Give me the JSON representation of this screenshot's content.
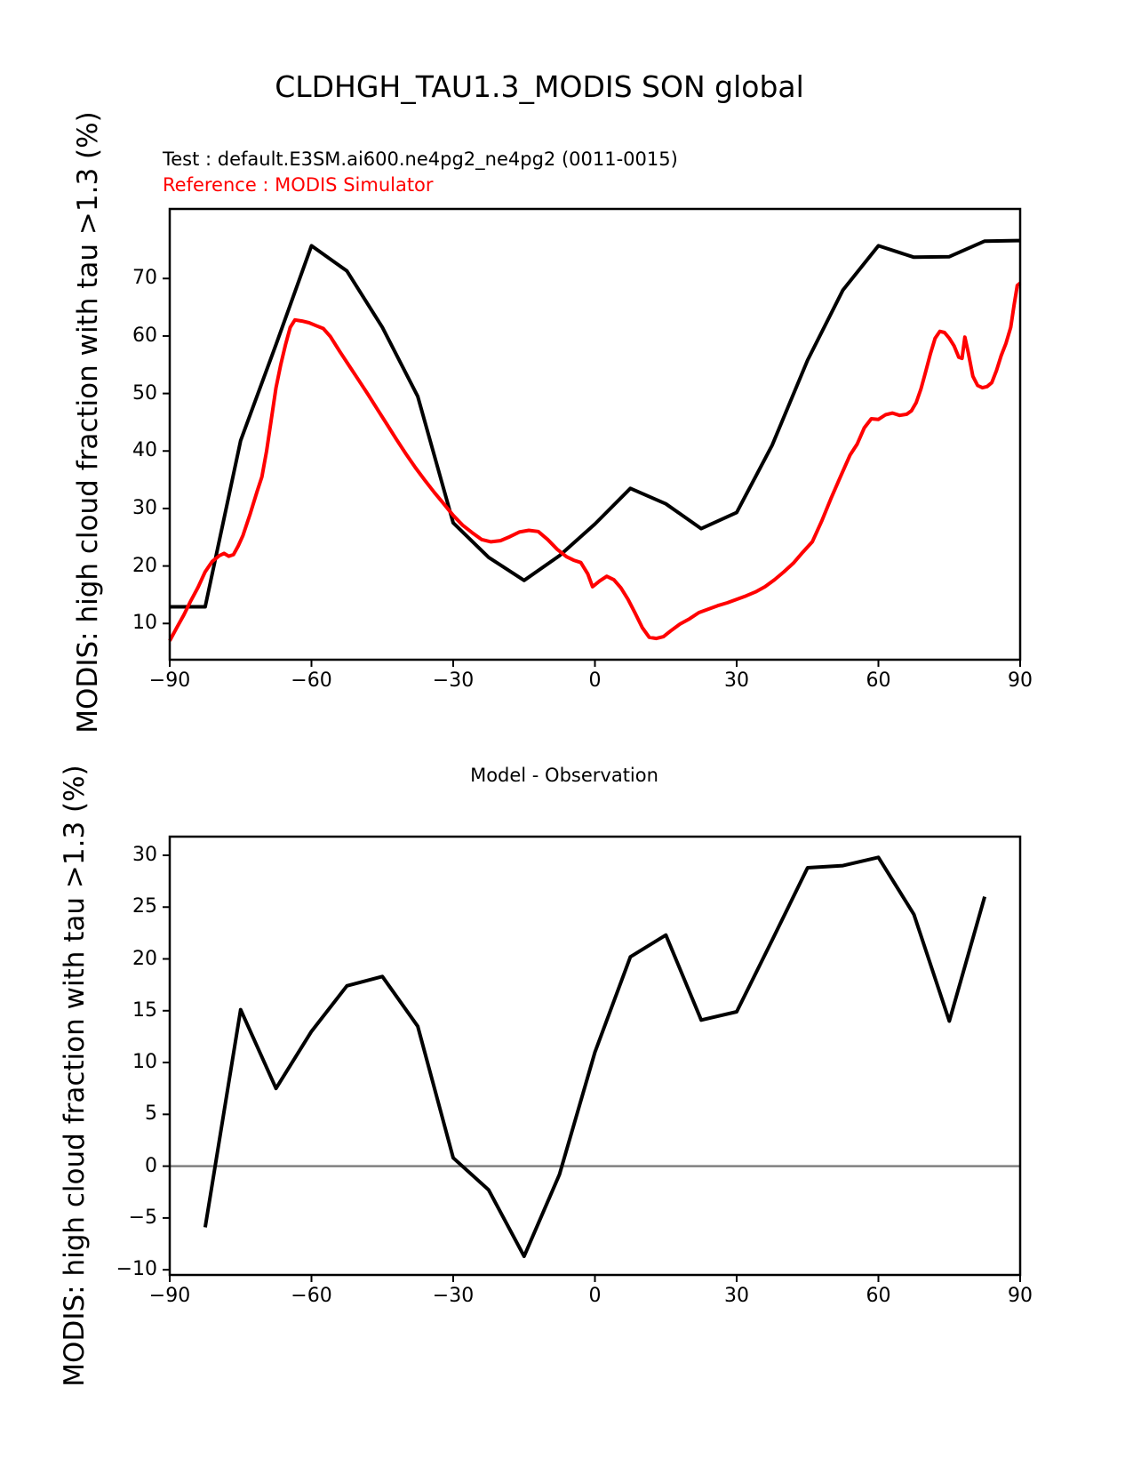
{
  "header": {
    "title": "CLDHGH_TAU1.3_MODIS SON global",
    "test_label": "Test : default.E3SM.ai600.ne4pg2_ne4pg2 (0011-0015)",
    "reference_label": "Reference : MODIS Simulator"
  },
  "colors": {
    "test_line": "#000000",
    "reference_line": "#ff0000",
    "zero_line": "#808080",
    "spine": "#000000"
  },
  "chart_data": [
    {
      "type": "line",
      "title": "",
      "xlabel": "",
      "ylabel": "MODIS: high cloud fraction with tau >1.3 (%)",
      "xlim": [
        -90,
        90
      ],
      "ylim": [
        3.7,
        82.1
      ],
      "xticks": [
        -90,
        -60,
        -30,
        0,
        30,
        60,
        90
      ],
      "xtick_labels": [
        "−90",
        "−60",
        "−30",
        "0",
        "30",
        "60",
        "90"
      ],
      "yticks": [
        10,
        20,
        30,
        40,
        50,
        60,
        70
      ],
      "ytick_labels": [
        "10",
        "20",
        "30",
        "40",
        "50",
        "60",
        "70"
      ],
      "grid": false,
      "legend_position": "none",
      "zero_line": false,
      "series": [
        {
          "name": "Test : default.E3SM.ai600.ne4pg2_ne4pg2 (0011-0015)",
          "slug": "test-line",
          "color": "#000000",
          "x": [
            -90,
            -82.5,
            -75,
            -67.5,
            -60,
            -52.5,
            -45,
            -37.5,
            -30,
            -22.5,
            -15,
            -7.5,
            0,
            7.5,
            15,
            22.5,
            30,
            37.5,
            45,
            52.5,
            60,
            67.5,
            75,
            82.5,
            90
          ],
          "y": [
            12.9,
            12.9,
            41.8,
            58.5,
            75.7,
            71.3,
            61.5,
            49.5,
            27.5,
            21.5,
            17.5,
            21.8,
            27.3,
            33.5,
            30.8,
            26.5,
            29.3,
            41.0,
            55.8,
            68.0,
            75.7,
            73.7,
            73.8,
            76.5,
            76.6
          ]
        },
        {
          "name": "Reference : MODIS Simulator",
          "slug": "reference-line",
          "color": "#ff0000",
          "x": [
            -90,
            -88.5,
            -87,
            -85.5,
            -84,
            -82.5,
            -81,
            -79.5,
            -78.5,
            -77.5,
            -76.5,
            -75.5,
            -74.5,
            -73,
            -71.5,
            -70.5,
            -69.5,
            -68.5,
            -67.5,
            -66.5,
            -65.5,
            -64.5,
            -63.5,
            -62,
            -60.5,
            -59,
            -57.5,
            -56,
            -54,
            -52,
            -50,
            -48,
            -46,
            -44,
            -42,
            -40,
            -38,
            -36,
            -34,
            -32,
            -30,
            -28,
            -26,
            -24,
            -22,
            -20,
            -18,
            -16,
            -14,
            -12,
            -10,
            -8,
            -6,
            -4.5,
            -3,
            -1.5,
            -0.5,
            1,
            2.5,
            4,
            5.5,
            7,
            8.5,
            10,
            11.5,
            13,
            14.5,
            16,
            18,
            20,
            22,
            24,
            26,
            28,
            30,
            32,
            34,
            36,
            38,
            40,
            42,
            44,
            46,
            48,
            50,
            52,
            54,
            55.5,
            57,
            58.5,
            60,
            61.5,
            63,
            64.5,
            66,
            67,
            68,
            69,
            70,
            71,
            72,
            73,
            74,
            75,
            76,
            77,
            77.7,
            78.3,
            79,
            80,
            81,
            82,
            83,
            84,
            85,
            86,
            87,
            88,
            88.7,
            89.4,
            90
          ],
          "y": [
            7.0,
            9.3,
            11.5,
            14.0,
            16.3,
            19.0,
            20.8,
            21.8,
            22.2,
            21.7,
            22.0,
            23.5,
            25.3,
            29.0,
            33.0,
            35.5,
            40.0,
            45.5,
            51.0,
            55.0,
            58.5,
            61.5,
            62.8,
            62.6,
            62.3,
            61.8,
            61.3,
            59.9,
            57.3,
            54.8,
            52.3,
            49.8,
            47.2,
            44.6,
            42.0,
            39.5,
            37.1,
            34.9,
            32.8,
            30.8,
            28.8,
            27.1,
            25.8,
            24.6,
            24.2,
            24.4,
            25.1,
            25.9,
            26.2,
            26.0,
            24.6,
            22.9,
            21.6,
            21.0,
            20.6,
            18.6,
            16.4,
            17.4,
            18.2,
            17.6,
            16.2,
            14.2,
            11.8,
            9.3,
            7.6,
            7.4,
            7.7,
            8.7,
            9.9,
            10.8,
            11.9,
            12.5,
            13.1,
            13.6,
            14.2,
            14.8,
            15.5,
            16.4,
            17.6,
            19.0,
            20.5,
            22.4,
            24.2,
            27.8,
            31.8,
            35.6,
            39.3,
            41.2,
            44.0,
            45.6,
            45.5,
            46.3,
            46.6,
            46.2,
            46.4,
            47.0,
            48.4,
            50.8,
            53.8,
            56.9,
            59.6,
            60.8,
            60.6,
            59.6,
            58.3,
            56.3,
            56.1,
            59.8,
            57.2,
            53.0,
            51.4,
            51.0,
            51.2,
            51.9,
            54.0,
            56.6,
            58.7,
            61.5,
            65.3,
            68.8,
            69.2
          ]
        }
      ]
    },
    {
      "type": "line",
      "title": "Model - Observation",
      "xlabel": "",
      "ylabel": "MODIS: high cloud fraction with tau >1.3 (%)",
      "xlim": [
        -90,
        90
      ],
      "ylim": [
        -10.5,
        31.8
      ],
      "xticks": [
        -90,
        -60,
        -30,
        0,
        30,
        60,
        90
      ],
      "xtick_labels": [
        "−90",
        "−60",
        "−30",
        "0",
        "30",
        "60",
        "90"
      ],
      "yticks": [
        30,
        25,
        20,
        15,
        10,
        5,
        0,
        -5,
        -10
      ],
      "ytick_labels": [
        "30",
        "25",
        "20",
        "15",
        "10",
        "5",
        "0",
        "−5",
        "−10"
      ],
      "grid": false,
      "legend_position": "none",
      "zero_line": true,
      "series": [
        {
          "name": "Model - Observation",
          "slug": "difference-line",
          "color": "#000000",
          "x": [
            -82.5,
            -75,
            -67.5,
            -60,
            -52.5,
            -45,
            -37.5,
            -30,
            -22.5,
            -15,
            -7.5,
            0,
            7.5,
            15,
            22.5,
            30,
            37.5,
            45,
            52.5,
            60,
            67.5,
            75,
            82.5
          ],
          "y": [
            -5.9,
            15.1,
            7.5,
            13.0,
            17.4,
            18.3,
            13.5,
            0.8,
            -2.3,
            -8.7,
            -0.8,
            11.0,
            20.2,
            22.3,
            14.1,
            14.9,
            21.8,
            28.8,
            29.0,
            29.8,
            24.3,
            14.0,
            26.0
          ]
        }
      ]
    }
  ]
}
